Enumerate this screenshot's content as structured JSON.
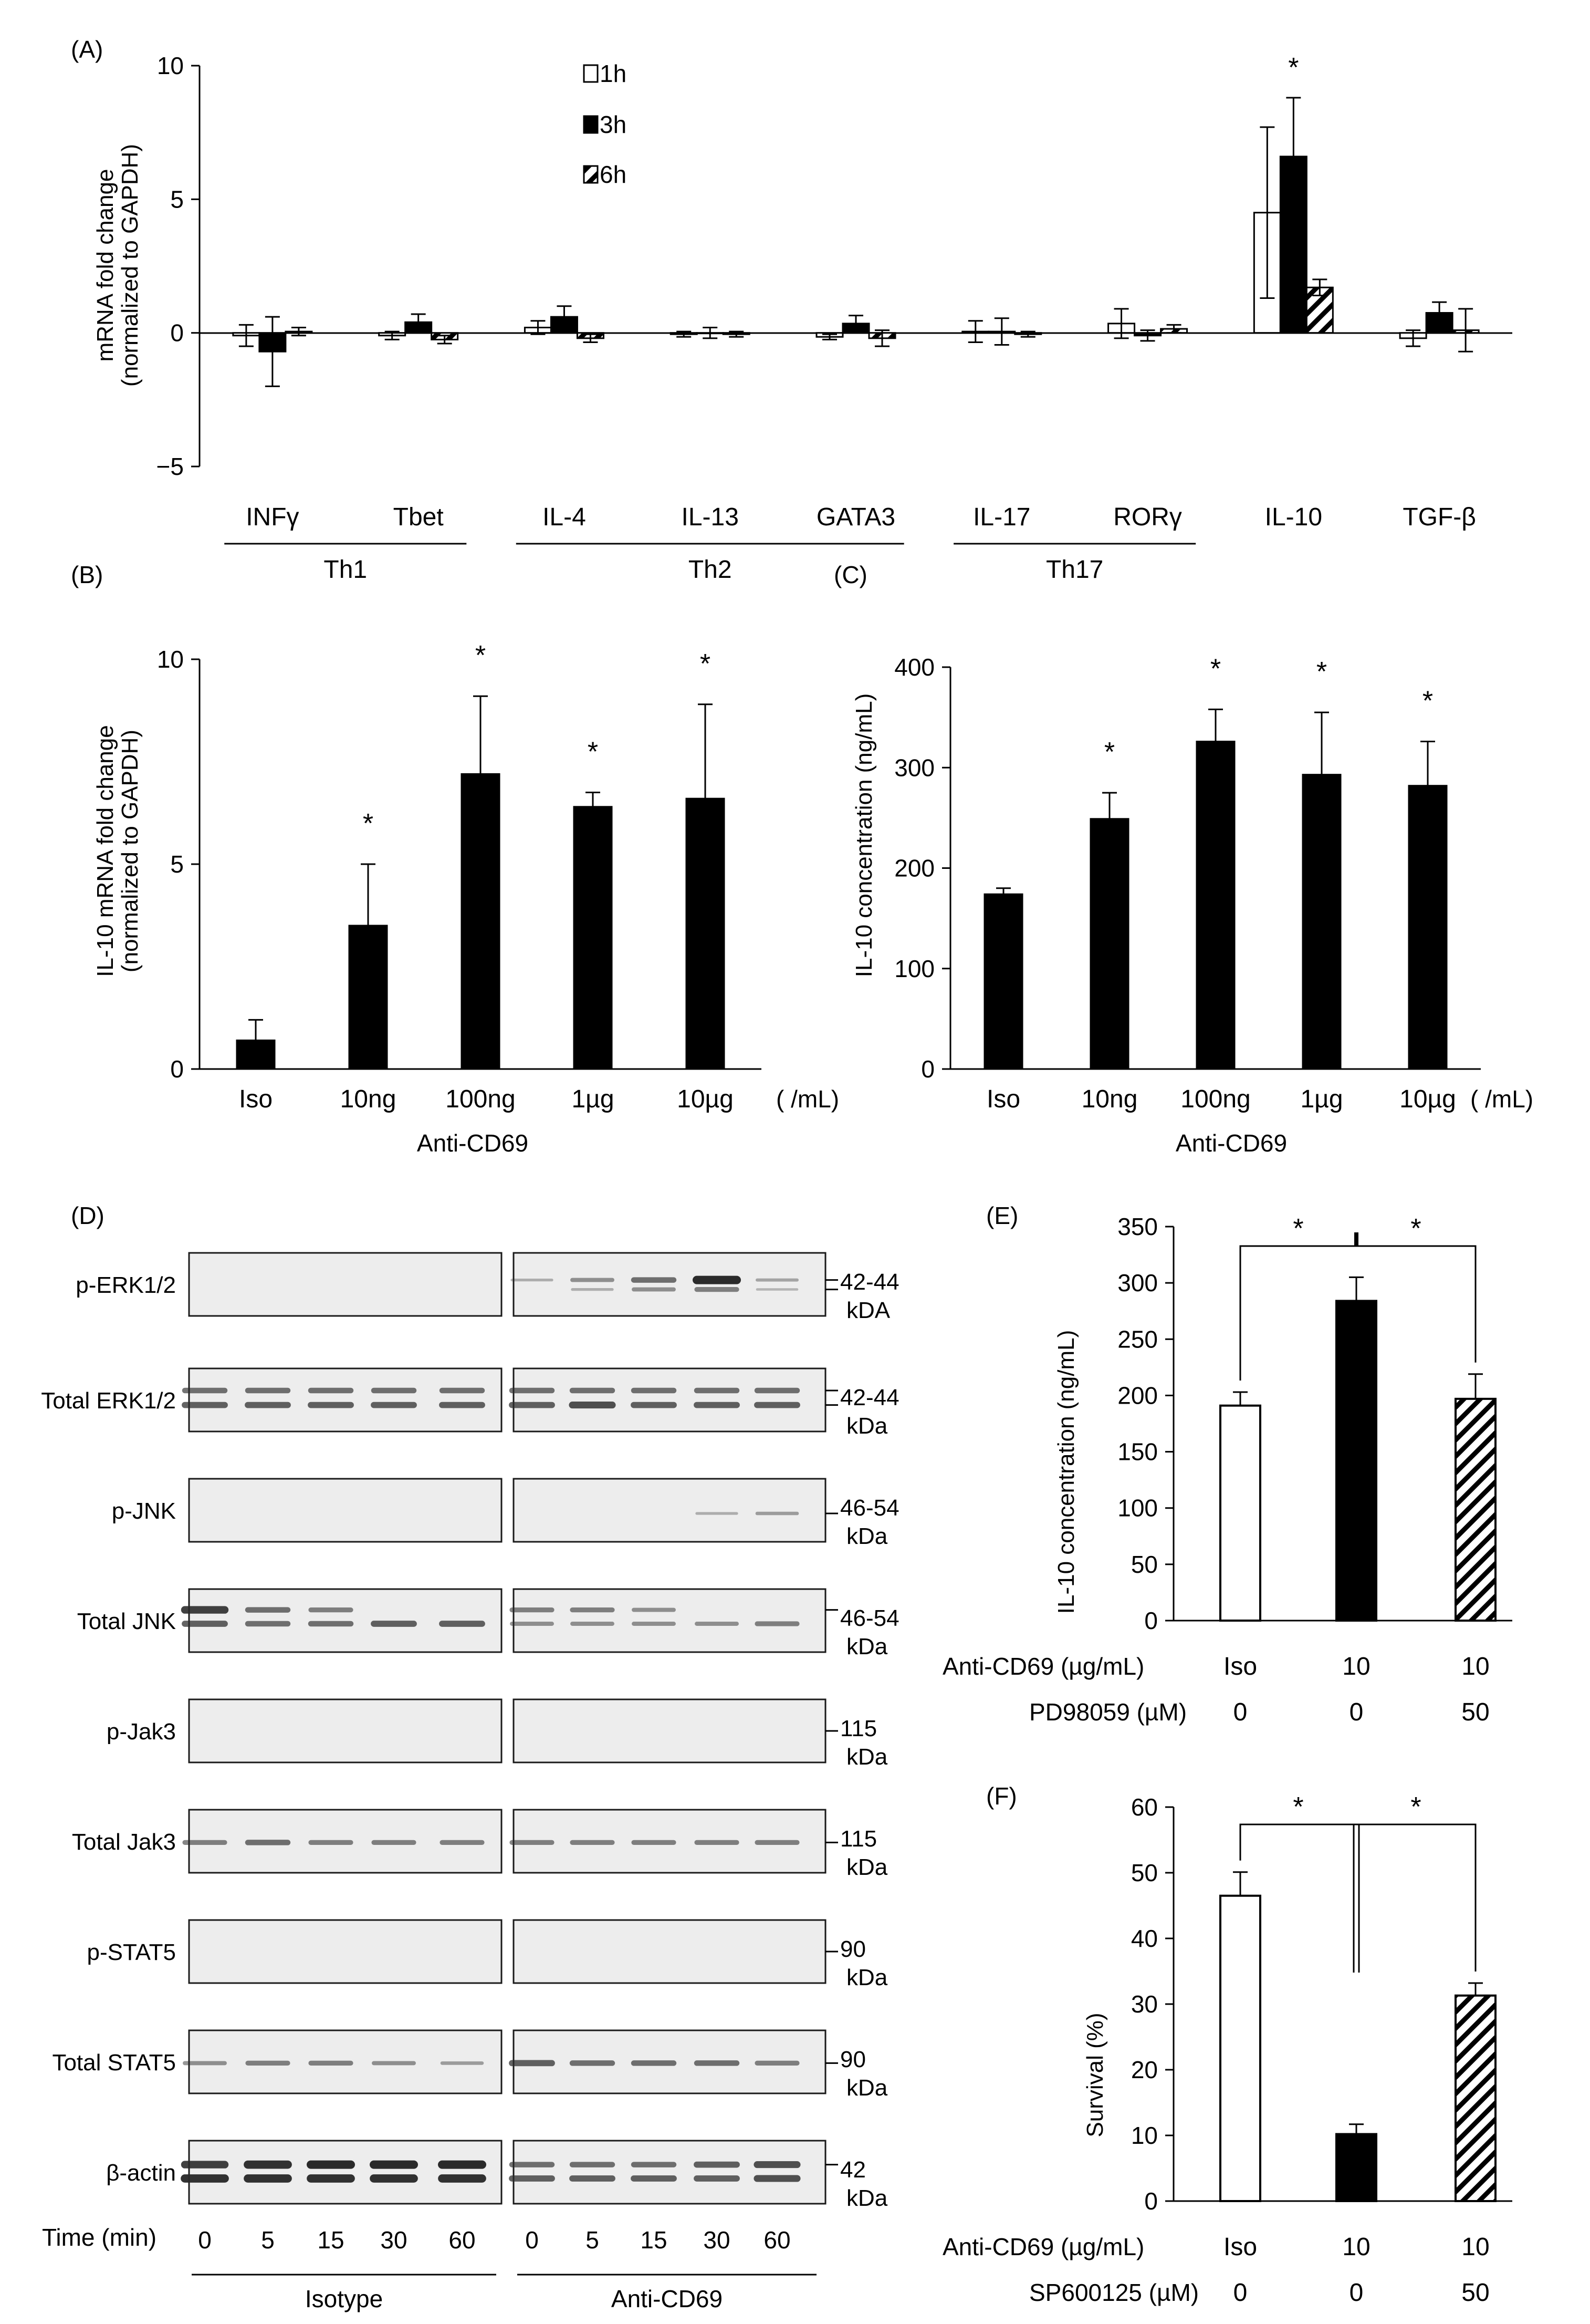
{
  "colors": {
    "black": "#000000",
    "white": "#ffffff",
    "blot_bg": "#ededed"
  },
  "icons": {
    "hatch": "diagonal-hatch-pattern"
  },
  "chart_data": [
    {
      "panel": "(A)",
      "type": "bar",
      "ylabel": "mRNA fold change",
      "ylabel2": "(normalized to GAPDH)",
      "ylim": [
        -5,
        10
      ],
      "yticks": [
        "10",
        "5",
        "0",
        "−5"
      ],
      "categories": [
        "INFγ",
        "Tbet",
        "IL-4",
        "IL-13",
        "GATA3",
        "IL-17",
        "RORγ",
        "IL-10",
        "TGF-β"
      ],
      "groups": [
        {
          "name": "Th1",
          "from": 0,
          "to": 1
        },
        {
          "name": "Th2",
          "from": 2,
          "to": 4
        },
        {
          "name": "Th17",
          "from": 5,
          "to": 6
        }
      ],
      "series": [
        {
          "name": "1h",
          "fill": "white",
          "values": [
            -0.1,
            -0.1,
            0.2,
            -0.05,
            -0.15,
            0.05,
            0.35,
            4.5,
            -0.2
          ],
          "errors": [
            0.4,
            0.15,
            0.25,
            0.1,
            0.1,
            0.4,
            0.55,
            3.2,
            0.3
          ]
        },
        {
          "name": "3h",
          "fill": "black",
          "values": [
            -0.7,
            0.4,
            0.6,
            0.0,
            0.35,
            0.05,
            -0.1,
            6.6,
            0.75
          ],
          "errors": [
            1.3,
            0.3,
            0.4,
            0.2,
            0.3,
            0.5,
            0.2,
            2.2,
            0.4
          ]
        },
        {
          "name": "6h",
          "fill": "hatch",
          "values": [
            0.05,
            -0.25,
            -0.2,
            -0.05,
            -0.2,
            -0.05,
            0.15,
            1.7,
            0.1
          ],
          "errors": [
            0.15,
            0.15,
            0.15,
            0.1,
            0.3,
            0.1,
            0.15,
            0.3,
            0.8
          ]
        }
      ],
      "significance": [
        {
          "category": "IL-10",
          "label": "*"
        }
      ]
    },
    {
      "panel": "(B)",
      "type": "bar",
      "ylabel": "IL-10 mRNA fold change",
      "ylabel2": "(normalized to GAPDH)",
      "ylim": [
        0,
        10
      ],
      "yticks": [
        "10",
        "5",
        "0"
      ],
      "categories": [
        "Iso",
        "10ng",
        "100ng",
        "1µg",
        "10µg"
      ],
      "unit": "( /mL)",
      "xlabel": "Anti-CD69",
      "values": [
        0.7,
        3.5,
        7.2,
        6.4,
        6.6
      ],
      "errors": [
        0.5,
        1.5,
        1.9,
        0.35,
        2.3
      ],
      "stars": [
        "",
        "*",
        "*",
        "*",
        "*"
      ]
    },
    {
      "panel": "(C)",
      "type": "bar",
      "ylabel": "IL-10 concentration (ng/mL)",
      "ylim": [
        0,
        400
      ],
      "yticks": [
        "400",
        "300",
        "200",
        "100",
        "0"
      ],
      "categories": [
        "Iso",
        "10ng",
        "100ng",
        "1µg",
        "10µg"
      ],
      "unit": "( /mL)",
      "xlabel": "Anti-CD69",
      "values": [
        174,
        249,
        326,
        293,
        282
      ],
      "errors": [
        6,
        26,
        32,
        62,
        44
      ],
      "stars": [
        "",
        "*",
        "*",
        "*",
        "*"
      ]
    },
    {
      "panel": "(E)",
      "type": "bar",
      "ylabel": "IL-10 concentration (ng/mL)",
      "ylim": [
        0,
        350
      ],
      "yticks": [
        "350",
        "300",
        "250",
        "200",
        "150",
        "100",
        "50",
        "0"
      ],
      "fills": [
        "white",
        "black",
        "hatch"
      ],
      "values": [
        191,
        284,
        197
      ],
      "errors": [
        12,
        21,
        22
      ],
      "row_labels": [
        "Anti-CD69 (µg/mL)",
        "PD98059 (µM)"
      ],
      "row1": [
        "Iso",
        "10",
        "10"
      ],
      "row2": [
        "0",
        "0",
        "50"
      ],
      "stars": [
        "*",
        "*"
      ]
    },
    {
      "panel": "(F)",
      "type": "bar",
      "ylabel": "Survival (%)",
      "ylim": [
        0,
        60
      ],
      "yticks": [
        "60",
        "50",
        "40",
        "30",
        "20",
        "10",
        "0"
      ],
      "fills": [
        "white",
        "black",
        "hatch"
      ],
      "values": [
        46.5,
        10.2,
        31.3
      ],
      "errors": [
        3.6,
        1.5,
        1.9
      ],
      "row_labels": [
        "Anti-CD69 (µg/mL)",
        "SP600125 (µM)"
      ],
      "row1": [
        "Iso",
        "10",
        "10"
      ],
      "row2": [
        "0",
        "0",
        "50"
      ],
      "stars": [
        "*",
        "*"
      ]
    }
  ],
  "blot": {
    "panel": "(D)",
    "rows": [
      {
        "label": "p-ERK1/2",
        "mw": "42-44",
        "unit": "kDA"
      },
      {
        "label": "Total ERK1/2",
        "mw": "42-44",
        "unit": "kDa"
      },
      {
        "label": "p-JNK",
        "mw": "46-54",
        "unit": "kDa"
      },
      {
        "label": "Total JNK",
        "mw": "46-54",
        "unit": "kDa"
      },
      {
        "label": "p-Jak3",
        "mw": "115",
        "unit": "kDa"
      },
      {
        "label": "Total Jak3",
        "mw": "115",
        "unit": "kDa"
      },
      {
        "label": "p-STAT5",
        "mw": "90",
        "unit": "kDa"
      },
      {
        "label": "Total STAT5",
        "mw": "90",
        "unit": "kDa"
      },
      {
        "label": "β-actin",
        "mw": "42",
        "unit": "kDa"
      }
    ],
    "time_label": "Time (min)",
    "time_points": [
      "0",
      "5",
      "15",
      "30",
      "60",
      "0",
      "5",
      "15",
      "30",
      "60"
    ],
    "groups": [
      "Isotype",
      "Anti-CD69"
    ]
  }
}
